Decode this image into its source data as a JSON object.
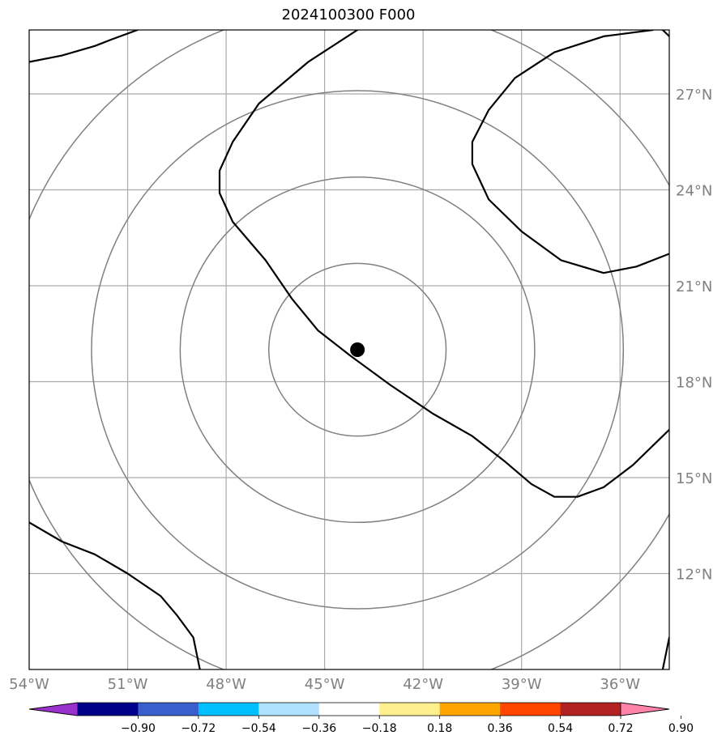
{
  "map": {
    "title": "2024100300 F000",
    "extent": {
      "lon_min": -54.0,
      "lon_max": -34.5,
      "lat_min": 9.0,
      "lat_max": 29.0
    },
    "meridians": [
      {
        "lon": -54,
        "label": "54°W"
      },
      {
        "lon": -51,
        "label": "51°W"
      },
      {
        "lon": -48,
        "label": "48°W"
      },
      {
        "lon": -45,
        "label": "45°W"
      },
      {
        "lon": -42,
        "label": "42°W"
      },
      {
        "lon": -39,
        "label": "39°W"
      },
      {
        "lon": -36,
        "label": "36°W"
      }
    ],
    "parallels": [
      {
        "lat": 12,
        "label": "12°N"
      },
      {
        "lat": 15,
        "label": "15°N"
      },
      {
        "lat": 18,
        "label": "18°N"
      },
      {
        "lat": 21,
        "label": "21°N"
      },
      {
        "lat": 24,
        "label": "24°N"
      },
      {
        "lat": 27,
        "label": "27°N"
      }
    ],
    "center": {
      "lon": -44.0,
      "lat": 19.0
    },
    "grid_color": "#aaaaaa",
    "ring_color": "#808080",
    "contour_color": "#000000",
    "contours": [
      [
        [
          -54.0,
          28.0
        ],
        [
          -53.0,
          28.2
        ],
        [
          -52.0,
          28.5
        ],
        [
          -51.5,
          28.7
        ],
        [
          -50.7,
          29.0
        ]
      ],
      [
        [
          -44.0,
          29.0
        ],
        [
          -45.5,
          28.0
        ],
        [
          -47.0,
          26.7
        ],
        [
          -47.8,
          25.5
        ],
        [
          -48.2,
          24.6
        ],
        [
          -48.2,
          23.9
        ],
        [
          -47.8,
          23.0
        ],
        [
          -46.8,
          21.8
        ],
        [
          -46.0,
          20.6
        ],
        [
          -45.2,
          19.6
        ],
        [
          -44.2,
          18.8
        ],
        [
          -43.0,
          17.9
        ],
        [
          -41.7,
          17.0
        ],
        [
          -40.5,
          16.3
        ],
        [
          -39.5,
          15.5
        ],
        [
          -38.7,
          14.8
        ],
        [
          -38.0,
          14.4
        ],
        [
          -37.3,
          14.4
        ],
        [
          -36.5,
          14.7
        ],
        [
          -35.6,
          15.4
        ],
        [
          -34.5,
          16.5
        ]
      ],
      [
        [
          -34.5,
          28.8
        ],
        [
          -34.7,
          29.0
        ]
      ],
      [
        [
          -35.0,
          29.0
        ],
        [
          -36.5,
          28.8
        ],
        [
          -38.0,
          28.3
        ],
        [
          -39.2,
          27.5
        ],
        [
          -40.0,
          26.5
        ],
        [
          -40.5,
          25.5
        ],
        [
          -40.5,
          24.8
        ],
        [
          -40.0,
          23.7
        ],
        [
          -39.0,
          22.7
        ],
        [
          -37.8,
          21.8
        ],
        [
          -36.5,
          21.4
        ],
        [
          -35.5,
          21.6
        ],
        [
          -34.5,
          22.0
        ]
      ],
      [
        [
          -54.0,
          13.6
        ],
        [
          -53.0,
          13.0
        ],
        [
          -52.0,
          12.6
        ],
        [
          -51.0,
          12.0
        ],
        [
          -50.0,
          11.3
        ],
        [
          -49.5,
          10.7
        ],
        [
          -49.0,
          10.0
        ],
        [
          -48.8,
          9.0
        ]
      ],
      [
        [
          -34.7,
          9.0
        ],
        [
          -34.5,
          10.0
        ]
      ]
    ],
    "ring_radii_deg": [
      2.7,
      5.4,
      8.1,
      10.8
    ]
  },
  "colorbar": {
    "colors": [
      "#9932cc",
      "#00008b",
      "#3a5fcd",
      "#00bfff",
      "#b0e2ff",
      "#ffffff",
      "#fff08f",
      "#ffa500",
      "#ff4500",
      "#b22222",
      "#ff82ab"
    ],
    "tick_labels": [
      "−0.90",
      "−0.72",
      "−0.54",
      "−0.36",
      "−0.18",
      "0.18",
      "0.36",
      "0.54",
      "0.72",
      "0.90"
    ]
  }
}
